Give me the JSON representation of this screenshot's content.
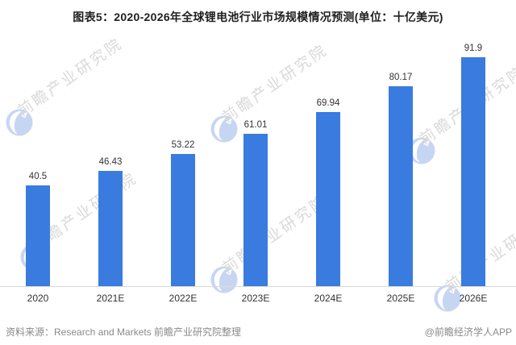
{
  "title": "图表5：2020-2026年全球锂电池行业市场规模情况预测(单位：十亿美元)",
  "chart_data": {
    "type": "bar",
    "title": "图表5：2020-2026年全球锂电池行业市场规模情况预测(单位：十亿美元)",
    "categories": [
      "2020",
      "2021E",
      "2022E",
      "2023E",
      "2024E",
      "2025E",
      "2026E"
    ],
    "values": [
      40.5,
      46.43,
      53.22,
      61.01,
      69.94,
      80.17,
      91.9
    ],
    "value_labels": [
      "40.5",
      "46.43",
      "53.22",
      "61.01",
      "69.94",
      "80.17",
      "91.9"
    ],
    "xlabel": "",
    "ylabel": "",
    "unit": "十亿美元",
    "ylim": [
      0,
      100
    ],
    "grid": false,
    "legend": false,
    "bar_color": "#3a7bdf"
  },
  "footer": {
    "source_label": "资料来源：Research and Markets 前瞻产业研究院整理",
    "credit_label": "@前瞻经济学人APP"
  },
  "watermark": {
    "icon": "qianzhan-logo-icon",
    "text": "前瞻产业研究院",
    "subtext": "· · · · · · · · · · · · · ·",
    "text_color": "#d9d9d9",
    "icon_color": "#c6d6f2"
  },
  "colors": {
    "bar": "#3a7bdf",
    "axis_line": "#d9d9d9",
    "title_text": "#1f1f1f",
    "label_text": "#333333",
    "footer_text": "#8a8a8a",
    "background": "#ffffff"
  }
}
